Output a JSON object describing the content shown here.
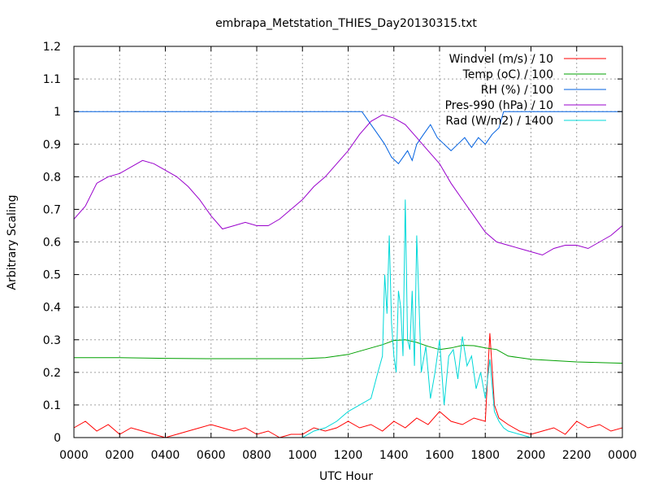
{
  "chart_data": {
    "type": "line",
    "title": "embrapa_Metstation_THIES_Day20130315.txt",
    "xlabel": "UTC Hour",
    "ylabel": "Arbitrary Scaling",
    "xlim": [
      0,
      24
    ],
    "ylim": [
      0,
      1.2
    ],
    "grid": true,
    "legend_position": "top-right",
    "xticks": [
      {
        "v": 0,
        "label": "0000"
      },
      {
        "v": 2,
        "label": "0200"
      },
      {
        "v": 4,
        "label": "0400"
      },
      {
        "v": 6,
        "label": "0600"
      },
      {
        "v": 8,
        "label": "0800"
      },
      {
        "v": 10,
        "label": "1000"
      },
      {
        "v": 12,
        "label": "1200"
      },
      {
        "v": 14,
        "label": "1400"
      },
      {
        "v": 16,
        "label": "1600"
      },
      {
        "v": 18,
        "label": "1800"
      },
      {
        "v": 20,
        "label": "2000"
      },
      {
        "v": 22,
        "label": "2200"
      },
      {
        "v": 24,
        "label": "0000"
      }
    ],
    "yticks": [
      {
        "v": 0,
        "label": "0"
      },
      {
        "v": 0.1,
        "label": "0.1"
      },
      {
        "v": 0.2,
        "label": "0.2"
      },
      {
        "v": 0.3,
        "label": "0.3"
      },
      {
        "v": 0.4,
        "label": "0.4"
      },
      {
        "v": 0.5,
        "label": "0.5"
      },
      {
        "v": 0.6,
        "label": "0.6"
      },
      {
        "v": 0.7,
        "label": "0.7"
      },
      {
        "v": 0.8,
        "label": "0.8"
      },
      {
        "v": 0.9,
        "label": "0.9"
      },
      {
        "v": 1.0,
        "label": "1"
      },
      {
        "v": 1.1,
        "label": "1.1"
      },
      {
        "v": 1.2,
        "label": "1.2"
      }
    ],
    "series": [
      {
        "name": "Windvel (m/s) / 10",
        "color": "#ff0000",
        "x": [
          0,
          0.5,
          1,
          1.5,
          2,
          2.5,
          3,
          3.5,
          4,
          4.5,
          5,
          5.5,
          6,
          6.5,
          7,
          7.5,
          8,
          8.5,
          9,
          9.5,
          10,
          10.5,
          11,
          11.5,
          12,
          12.5,
          13,
          13.5,
          14,
          14.5,
          15,
          15.5,
          16,
          16.5,
          17,
          17.5,
          18,
          18.2,
          18.4,
          18.6,
          19,
          19.5,
          20,
          20.5,
          21,
          21.5,
          22,
          22.5,
          23,
          23.5,
          24
        ],
        "y": [
          0.03,
          0.05,
          0.02,
          0.04,
          0.01,
          0.03,
          0.02,
          0.01,
          0.0,
          0.01,
          0.02,
          0.03,
          0.04,
          0.03,
          0.02,
          0.03,
          0.01,
          0.02,
          0.0,
          0.01,
          0.01,
          0.03,
          0.02,
          0.03,
          0.05,
          0.03,
          0.04,
          0.02,
          0.05,
          0.03,
          0.06,
          0.04,
          0.08,
          0.05,
          0.04,
          0.06,
          0.05,
          0.32,
          0.1,
          0.06,
          0.04,
          0.02,
          0.01,
          0.02,
          0.03,
          0.01,
          0.05,
          0.03,
          0.04,
          0.02,
          0.03
        ]
      },
      {
        "name": "Temp (oC) / 100",
        "color": "#00a000",
        "x": [
          0,
          2,
          4,
          6,
          8,
          10,
          11,
          12,
          13,
          13.5,
          14,
          14.5,
          15,
          15.5,
          16,
          16.5,
          17,
          17.5,
          18,
          18.5,
          19,
          20,
          22,
          24
        ],
        "y": [
          0.245,
          0.245,
          0.243,
          0.242,
          0.242,
          0.242,
          0.245,
          0.255,
          0.275,
          0.285,
          0.298,
          0.3,
          0.292,
          0.28,
          0.27,
          0.275,
          0.283,
          0.282,
          0.275,
          0.27,
          0.25,
          0.24,
          0.232,
          0.228
        ]
      },
      {
        "name": "RH (%) / 100",
        "color": "#0060e0",
        "x": [
          0,
          12.6,
          13.0,
          13.3,
          13.6,
          13.9,
          14.2,
          14.4,
          14.6,
          14.8,
          15.0,
          15.3,
          15.6,
          15.9,
          16.2,
          16.5,
          16.8,
          17.1,
          17.4,
          17.7,
          18.0,
          18.3,
          18.6,
          18.8,
          24
        ],
        "y": [
          1.0,
          1.0,
          0.96,
          0.93,
          0.9,
          0.86,
          0.84,
          0.86,
          0.88,
          0.85,
          0.9,
          0.93,
          0.96,
          0.92,
          0.9,
          0.88,
          0.9,
          0.92,
          0.89,
          0.92,
          0.9,
          0.93,
          0.95,
          1.0,
          1.0
        ]
      },
      {
        "name": "Pres-990 (hPa) / 10",
        "color": "#9900cc",
        "x": [
          0,
          0.5,
          1,
          1.5,
          2,
          2.5,
          3,
          3.5,
          4,
          4.5,
          5,
          5.5,
          6,
          6.5,
          7,
          7.5,
          8,
          8.5,
          9,
          9.5,
          10,
          10.5,
          11,
          11.5,
          12,
          12.5,
          13,
          13.5,
          14,
          14.5,
          15,
          15.5,
          16,
          16.5,
          17,
          17.5,
          18,
          18.5,
          19,
          19.5,
          20,
          20.5,
          21,
          21.5,
          22,
          22.5,
          23,
          23.5,
          24
        ],
        "y": [
          0.67,
          0.71,
          0.78,
          0.8,
          0.81,
          0.83,
          0.85,
          0.84,
          0.82,
          0.8,
          0.77,
          0.73,
          0.68,
          0.64,
          0.65,
          0.66,
          0.65,
          0.65,
          0.67,
          0.7,
          0.73,
          0.77,
          0.8,
          0.84,
          0.88,
          0.93,
          0.97,
          0.99,
          0.98,
          0.96,
          0.92,
          0.88,
          0.84,
          0.78,
          0.73,
          0.68,
          0.63,
          0.6,
          0.59,
          0.58,
          0.57,
          0.56,
          0.58,
          0.59,
          0.59,
          0.58,
          0.6,
          0.62,
          0.65
        ]
      },
      {
        "name": "Rad (W/m2) / 1400",
        "color": "#00d8d8",
        "x": [
          0,
          10,
          10.5,
          11,
          11.5,
          12,
          12.5,
          13,
          13.3,
          13.5,
          13.6,
          13.7,
          13.8,
          13.9,
          14.0,
          14.1,
          14.2,
          14.3,
          14.4,
          14.5,
          14.6,
          14.7,
          14.8,
          14.9,
          15.0,
          15.2,
          15.4,
          15.6,
          15.8,
          16.0,
          16.2,
          16.4,
          16.6,
          16.8,
          17.0,
          17.2,
          17.4,
          17.6,
          17.8,
          18.0,
          18.2,
          18.4,
          18.6,
          18.8,
          19.0,
          19.5,
          20,
          24
        ],
        "y": [
          0.0,
          0.0,
          0.02,
          0.03,
          0.05,
          0.08,
          0.1,
          0.12,
          0.2,
          0.25,
          0.5,
          0.38,
          0.62,
          0.35,
          0.25,
          0.2,
          0.45,
          0.4,
          0.25,
          0.73,
          0.3,
          0.27,
          0.45,
          0.22,
          0.62,
          0.2,
          0.28,
          0.12,
          0.2,
          0.3,
          0.1,
          0.25,
          0.27,
          0.18,
          0.31,
          0.22,
          0.25,
          0.15,
          0.2,
          0.12,
          0.24,
          0.08,
          0.05,
          0.03,
          0.02,
          0.01,
          0.0,
          0.0
        ]
      }
    ]
  }
}
